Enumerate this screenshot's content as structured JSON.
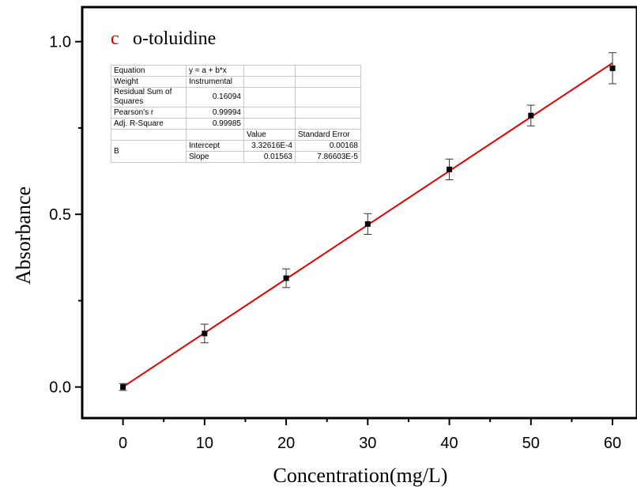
{
  "chart_data": {
    "type": "scatter",
    "panel_letter": "c",
    "title": "o-toluidine",
    "xlabel": "Concentration(mg/L)",
    "ylabel": "Absorbance",
    "xlim": [
      -5,
      63
    ],
    "ylim": [
      -0.09,
      1.1
    ],
    "xticks": [
      0,
      10,
      20,
      30,
      40,
      50,
      60
    ],
    "yticks": [
      0.0,
      0.5,
      1.0
    ],
    "ytick_labels": [
      "0.0",
      "0.5",
      "1.0"
    ],
    "grid": false,
    "series": [
      {
        "x": [
          0,
          10,
          20,
          30,
          40,
          50,
          60
        ],
        "y": [
          0.0,
          0.155,
          0.315,
          0.472,
          0.63,
          0.786,
          0.923
        ],
        "error": [
          0.01,
          0.027,
          0.027,
          0.03,
          0.03,
          0.03,
          0.045
        ],
        "marker_color": "#000000"
      }
    ],
    "fit_line": {
      "intercept": 0.000332616,
      "slope": 0.01563,
      "x_range": [
        0,
        60
      ],
      "color": "#e00000"
    },
    "fit_table": {
      "equation_label": "Equation",
      "equation": "y = a + b*x",
      "weight_label": "Weight",
      "weight": "Instrumental",
      "rss_label": "Residual Sum of Squares",
      "rss": "0.16094",
      "pearson_label": "Pearson's r",
      "pearson": "0.99994",
      "adjr2_label": "Adj. R-Square",
      "adjr2": "0.99985",
      "value_header": "Value",
      "stderr_header": "Standard Error",
      "param_label": "B",
      "intercept_label": "Intercept",
      "intercept_value": "3.32616E-4",
      "intercept_error": "0.00168",
      "slope_label": "Slope",
      "slope_value": "0.01563",
      "slope_error": "7.86603E-5"
    }
  }
}
